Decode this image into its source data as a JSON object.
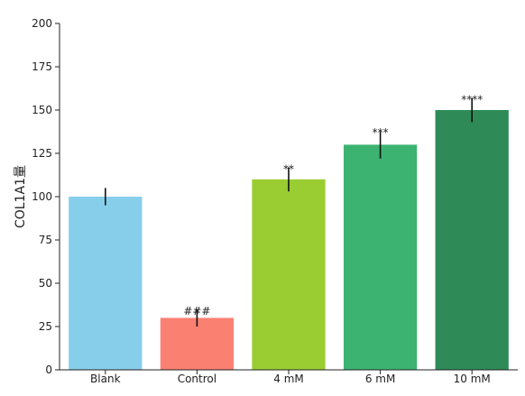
{
  "chart_data": {
    "type": "bar",
    "categories": [
      "Blank",
      "Control",
      "4 mM",
      "6 mM",
      "10 mM"
    ],
    "values": [
      100,
      30,
      110,
      130,
      150
    ],
    "errors": [
      5,
      5,
      7,
      8,
      7
    ],
    "annotations": [
      "",
      "###",
      "**",
      "***",
      "****"
    ],
    "colors": [
      "#87ceeb",
      "#fa8072",
      "#9acd32",
      "#3cb371",
      "#2e8b57"
    ],
    "xlabel": "",
    "ylabel": "COL1A1量",
    "ylim": [
      0,
      200
    ],
    "yticks": [
      0,
      25,
      50,
      75,
      100,
      125,
      150,
      175,
      200
    ],
    "grid": false,
    "legend": "none"
  }
}
